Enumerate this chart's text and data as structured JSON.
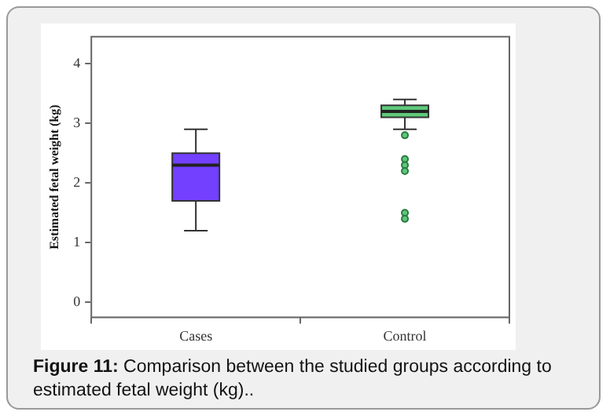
{
  "chart_data": {
    "type": "box",
    "categories": [
      "Cases",
      "Control"
    ],
    "ylabel": "Estimated fetal weight (kg)",
    "ylim": [
      -0.25,
      4.45
    ],
    "yticks": [
      0,
      1,
      2,
      3,
      4
    ],
    "grid": false,
    "series": [
      {
        "color": "#7340ff",
        "boxes": [
          {
            "low": 1.2,
            "q1": 1.7,
            "median": 2.3,
            "q3": 2.5,
            "high": 2.9
          },
          null
        ]
      },
      {
        "color": "#5ec97a",
        "boxes": [
          null,
          {
            "low": 2.9,
            "q1": 3.1,
            "median": 3.2,
            "q3": 3.3,
            "high": 3.4,
            "outliers": [
              2.8,
              2.4,
              2.3,
              2.2,
              1.5,
              1.4
            ]
          }
        ]
      }
    ],
    "annotations": [
      "Figure 11:  Comparison between the studied groups according to estimated fetal weight (kg).."
    ]
  }
}
